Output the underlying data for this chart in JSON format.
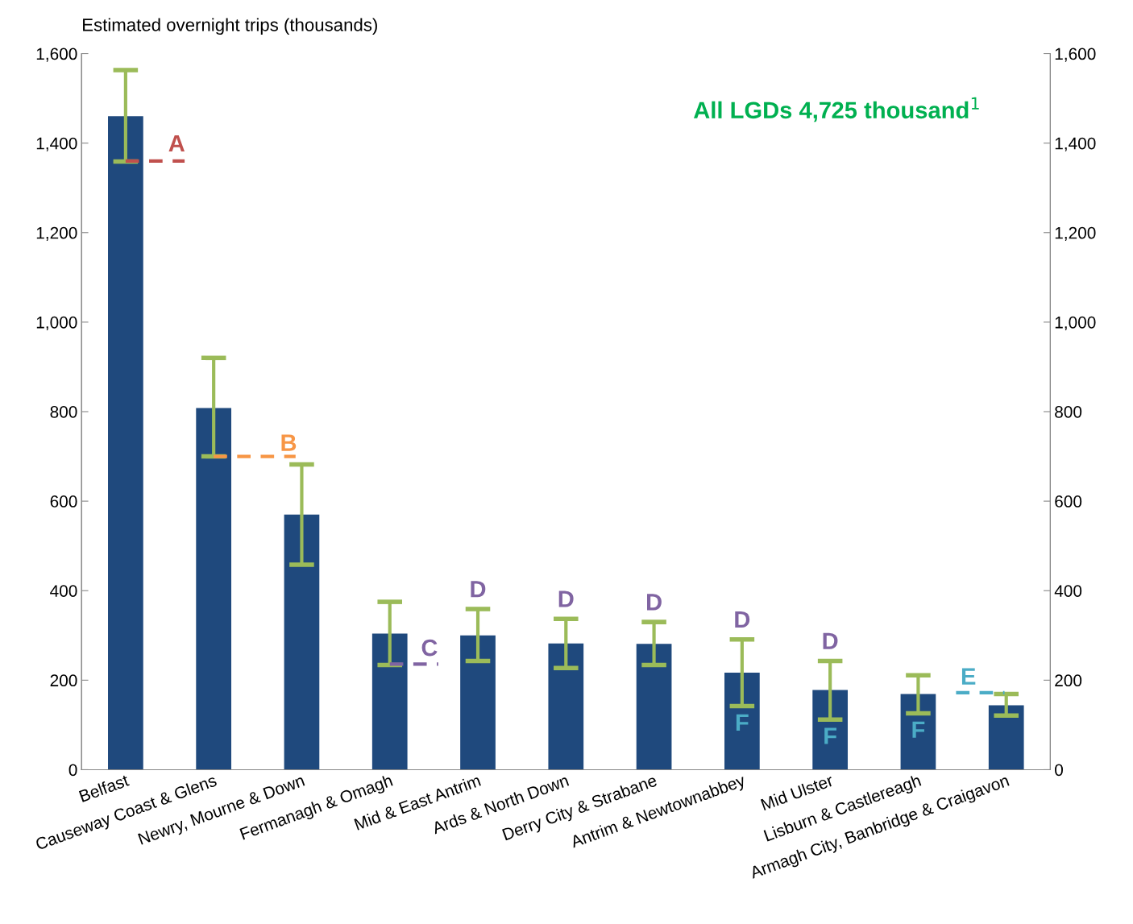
{
  "chart_data": {
    "type": "bar",
    "ylabel": "Estimated overnight trips (thousands)",
    "categories": [
      "Belfast",
      "Causeway Coast & Glens",
      "Newry, Mourne & Down",
      "Fermanagh & Omagh",
      "Mid & East Antrim",
      "Ards & North Down",
      "Derry City & Strabane",
      "Antrim & Newtownabbey",
      "Mid Ulster",
      "Lisburn & Castlereagh",
      "Armagh City, Banbridge & Craigavon"
    ],
    "values": [
      1460,
      808,
      570,
      304,
      300,
      282,
      281,
      217,
      178,
      169,
      144
    ],
    "color": "#1f497d",
    "errors": [
      [
        1359,
        1563
      ],
      [
        700,
        920
      ],
      [
        458,
        682
      ],
      [
        234,
        375
      ],
      [
        243,
        359
      ],
      [
        227,
        337
      ],
      [
        234,
        330
      ],
      [
        142,
        291
      ],
      [
        112,
        243
      ],
      [
        126,
        211
      ],
      [
        121,
        169
      ]
    ],
    "ylim": [
      0,
      1600
    ],
    "yticks": [
      0,
      200,
      400,
      600,
      800,
      {
        "value": 1000,
        "label": "1,000"
      },
      {
        "value": 1200,
        "label": "1,200"
      },
      {
        "value": 1400,
        "label": "1,400"
      },
      {
        "value": 1600,
        "label": "1,600"
      }
    ],
    "y2lim": [
      0,
      1600
    ],
    "y2ticks": [
      0,
      200,
      400,
      600,
      800,
      {
        "value": 1000,
        "label": "1,000"
      },
      {
        "value": 1200,
        "label": "1,200"
      },
      {
        "value": 1400,
        "label": "1,400"
      },
      {
        "value": 1600,
        "label": "1,600"
      }
    ],
    "grid": false,
    "legend": false,
    "annotations": [
      "All LGDs 4,725 thousand$^{1}$",
      {
        "text": "A",
        "x": "Belfast",
        "y": 1360
      },
      {
        "text": "B",
        "x": "Causeway Coast & Glens",
        "y": 700
      },
      {
        "text": "C",
        "x": "Fermanagh & Omagh",
        "y": 236
      },
      {
        "text": "D",
        "x": "Mid & East Antrim",
        "y": 359
      },
      {
        "text": "D",
        "x": "Ards & North Down",
        "y": 337
      },
      {
        "text": "D",
        "x": "Derry City & Strabane",
        "y": 330
      },
      {
        "text": "D",
        "x": "Antrim & Newtownabbey",
        "y": 291
      },
      {
        "text": "D",
        "x": "Mid Ulster",
        "y": 243
      },
      {
        "text": "E",
        "x": "Armagh City, Banbridge & Craigavon",
        "y": 172
      },
      {
        "text": "F",
        "x": "Antrim & Newtownabbey",
        "y": 142
      },
      {
        "text": "F",
        "x": "Mid Ulster",
        "y": 112
      },
      {
        "text": "F",
        "x": "Lisburn & Castlereagh",
        "y": 126
      }
    ]
  }
}
